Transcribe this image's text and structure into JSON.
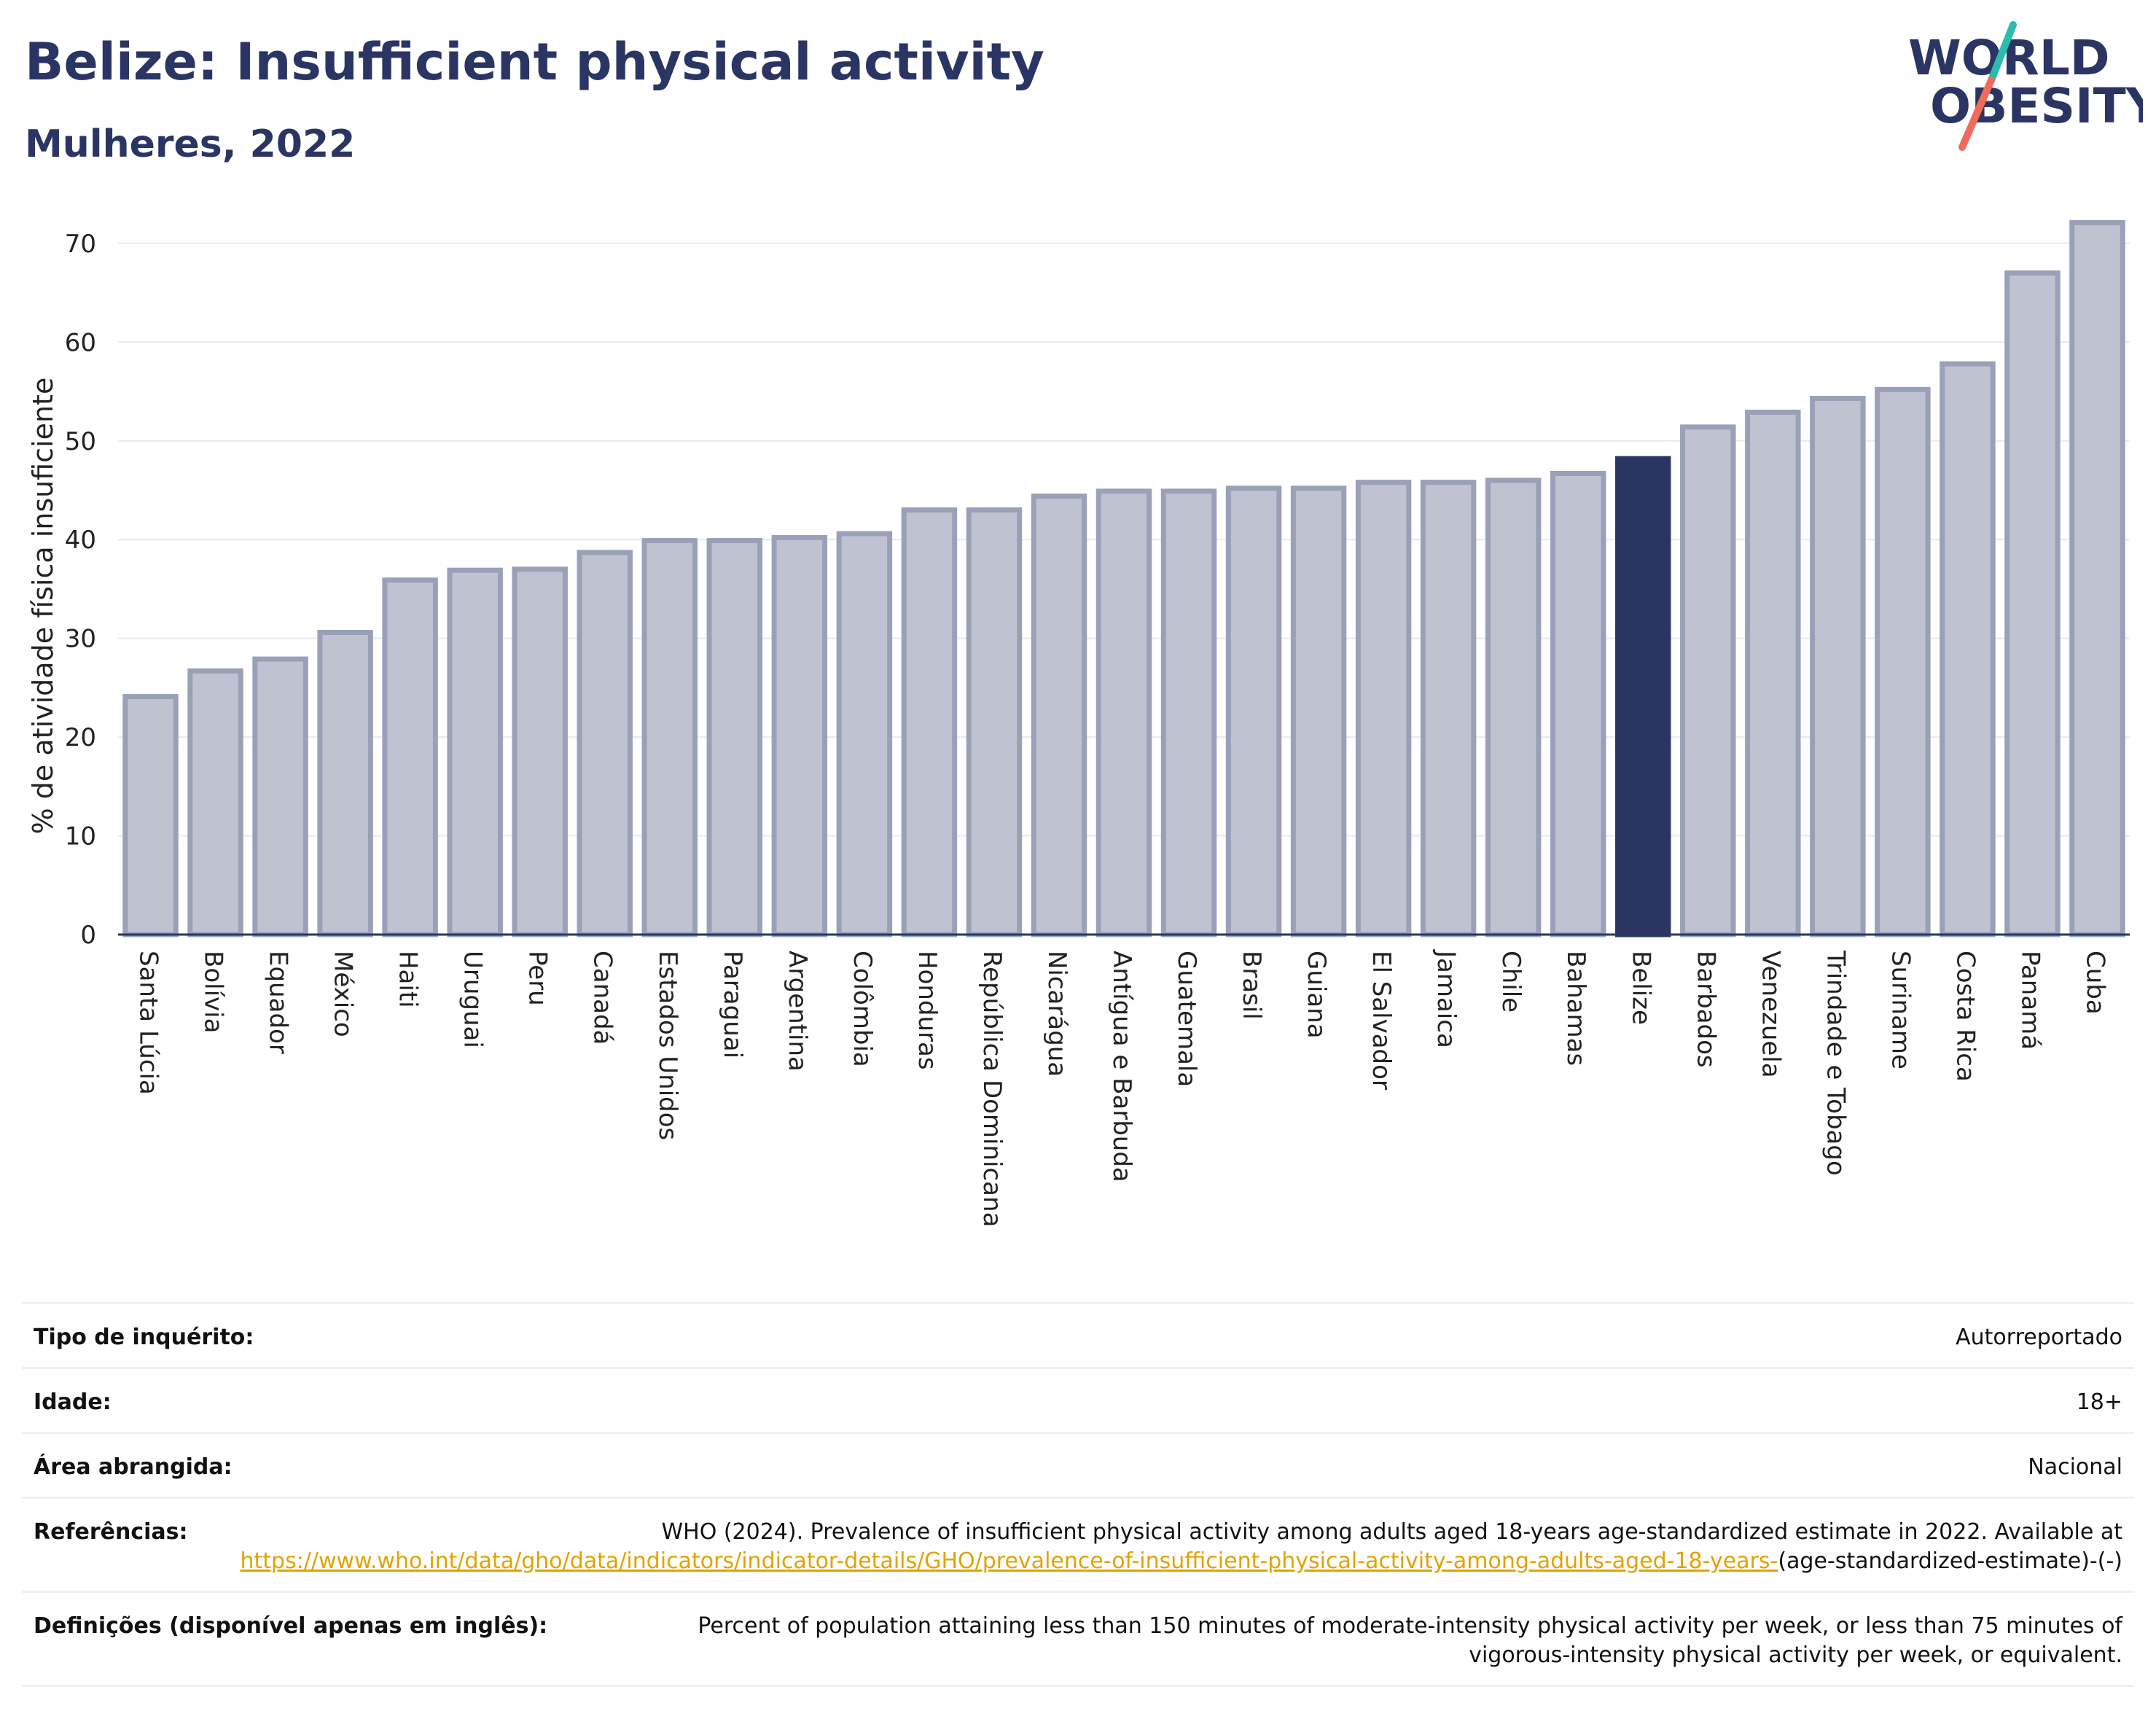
{
  "header": {
    "title": "Belize: Insufficient physical activity",
    "subtitle": "Mulheres, 2022",
    "logo_line1": "WORLD",
    "logo_line2": "OBESITY"
  },
  "colors": {
    "bar": "#bfc3d1",
    "bar_border": "#9aa0b8",
    "highlight": "#2b3563",
    "axis": "#2b3563",
    "grid": "#e7e9f0",
    "logo_text": "#2b3563",
    "logo_slash_top": "#2bbbb0",
    "logo_slash_bottom": "#f06b5a"
  },
  "chart_data": {
    "type": "bar",
    "title": "Belize: Insufficient physical activity",
    "subtitle": "Mulheres, 2022",
    "xlabel": "",
    "ylabel": "% de atividade física insuficiente",
    "ylim": [
      0,
      72.5
    ],
    "yticks": [
      0,
      10,
      20,
      30,
      40,
      50,
      60,
      70
    ],
    "grid": true,
    "highlight": "Belize",
    "categories": [
      "Santa Lúcia",
      "Bolívia",
      "Equador",
      "México",
      "Haiti",
      "Uruguai",
      "Peru",
      "Canadá",
      "Estados Unidos",
      "Paraguai",
      "Argentina",
      "Colômbia",
      "Honduras",
      "República Dominicana",
      "Nicarágua",
      "Antígua e Barbuda",
      "Guatemala",
      "Brasil",
      "Guiana",
      "El Salvador",
      "Jamaica",
      "Chile",
      "Bahamas",
      "Belize",
      "Barbados",
      "Venezuela",
      "Trindade e Tobago",
      "Suriname",
      "Costa Rica",
      "Panamá",
      "Cuba"
    ],
    "values": [
      24.1,
      26.7,
      27.9,
      30.6,
      35.9,
      36.9,
      37.0,
      38.7,
      39.9,
      39.9,
      40.2,
      40.6,
      43.0,
      43.0,
      44.4,
      44.9,
      44.9,
      45.2,
      45.2,
      45.8,
      45.8,
      46.0,
      46.7,
      48.2,
      51.4,
      52.9,
      54.3,
      55.2,
      57.8,
      67.0,
      72.1
    ]
  },
  "info": [
    {
      "key": "Tipo de inquérito:",
      "value": "Autorreportado"
    },
    {
      "key": "Idade:",
      "value": "18+"
    },
    {
      "key": "Área abrangida:",
      "value": "Nacional"
    },
    {
      "key": "Referências:",
      "value": "WHO (2024). Prevalence of insufficient physical activity among adults aged 18-years age-standardized estimate in 2022. Available at",
      "link": "https://www.who.int/data/gho/data/indicators/indicator-details/GHO/prevalence-of-insufficient-physical-activity-among-adults-aged-18-years-",
      "suffix": "(age-standardized-estimate)-(-)"
    },
    {
      "key": "Definições (disponível apenas em inglês):",
      "value": "Percent of population attaining less than 150 minutes of moderate-intensity physical activity per week, or less than 75 minutes of vigorous-intensity physical activity per week, or equivalent."
    }
  ]
}
